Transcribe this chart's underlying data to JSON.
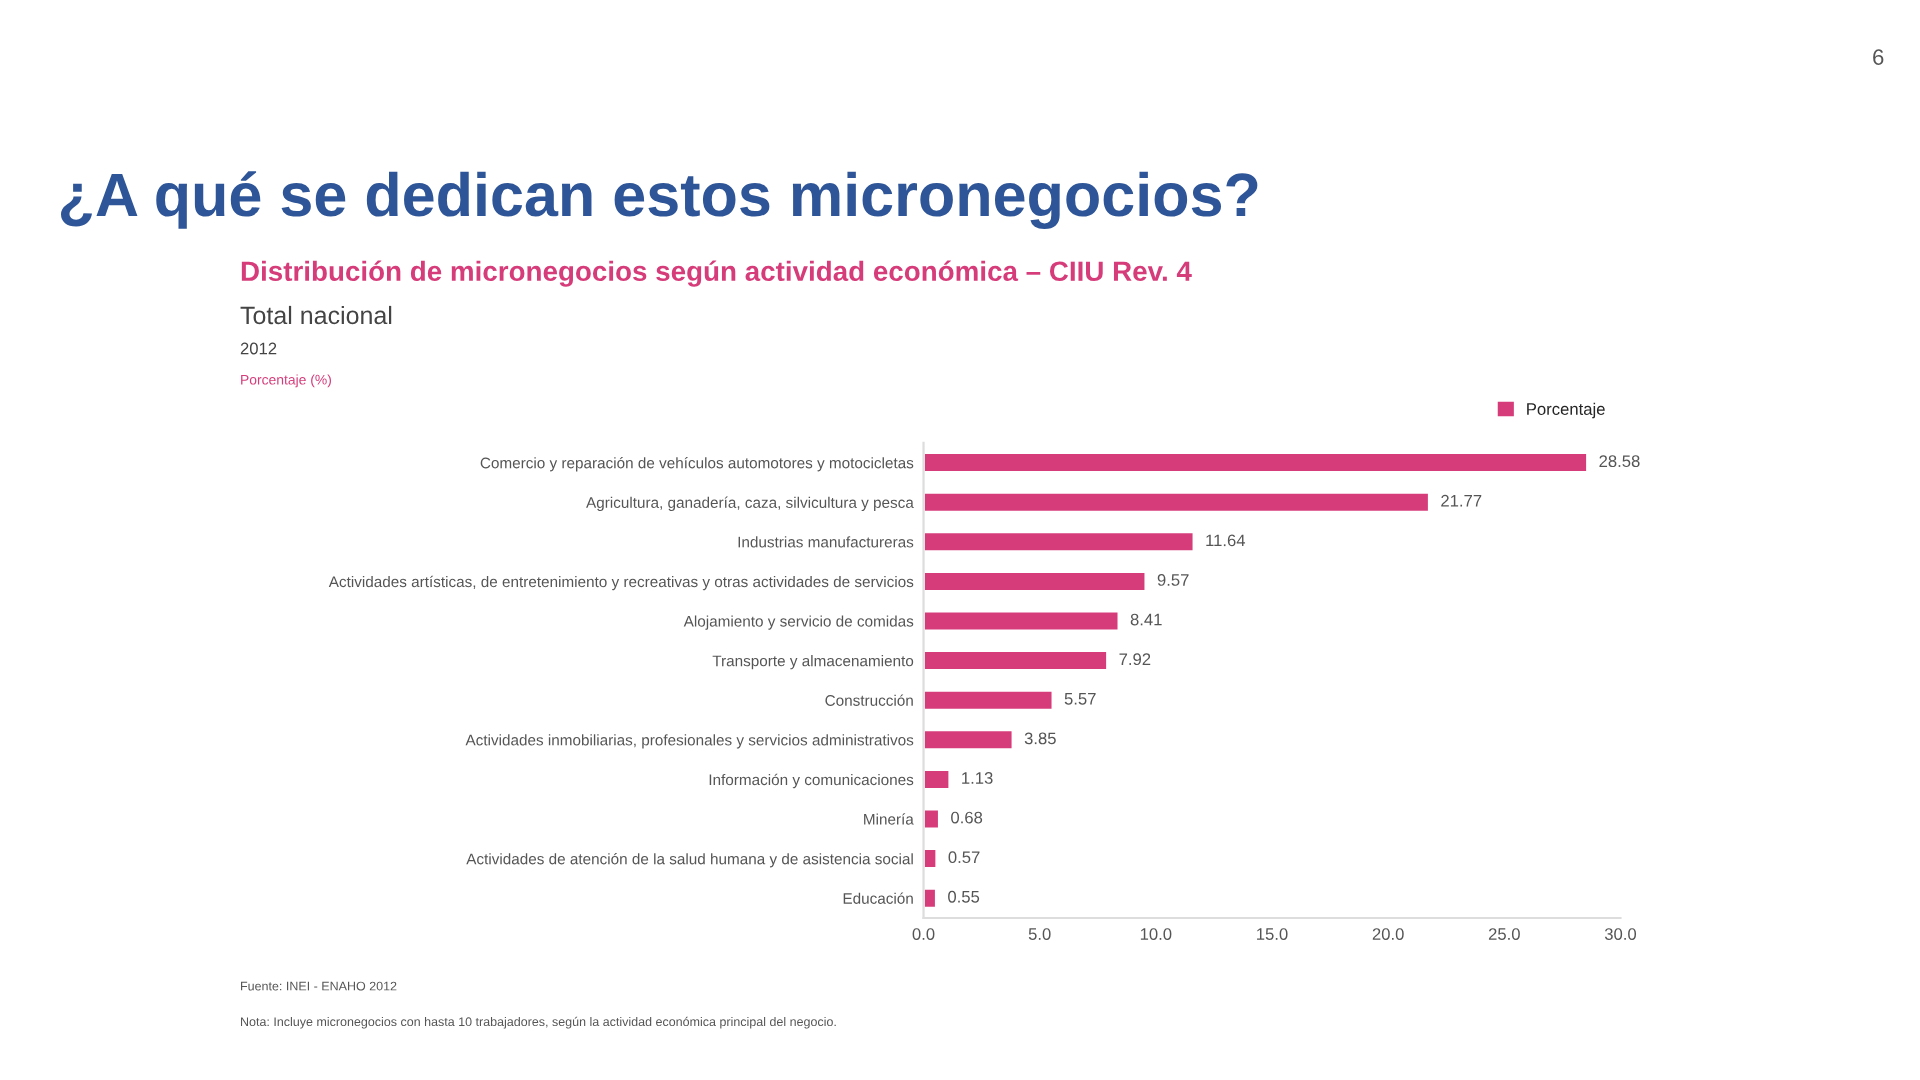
{
  "chart_data": {
    "type": "bar",
    "orientation": "horizontal",
    "title": "Distribución de micronegocios según actividad económica – CIIU Rev. 4",
    "subtitle": "Total nacional\n2012\nPorcentaje (%)",
    "categories": [
      "Comercio y reparación de vehículos automotores y motocicletas",
      "Agricultura, ganadería, caza, silvicultura y pesca",
      "Industrias manufactureras",
      "Actividades artísticas, de entretenimiento y recreativas y otras actividades de servicios",
      "Alojamiento y servicio de comidas",
      "Transporte y almacenamiento",
      "Construcción",
      "Actividades inmobiliarias, profesionales y servicios administrativos",
      "Información y comunicaciones",
      "Minería",
      "Actividades de atención de la salud humana y de asistencia social",
      "Educación"
    ],
    "series": [
      {
        "name": "Porcentaje",
        "color": "#d63c7a",
        "values": [
          28.58,
          21.77,
          11.64,
          9.57,
          8.41,
          7.92,
          5.57,
          3.85,
          1.13,
          0.68,
          0.57,
          0.55
        ]
      }
    ],
    "value_labels": [
      "28.58",
      "21.77",
      "11.64",
      "9.57",
      "8.41",
      "7.92",
      "5.57",
      "3.85",
      "1.13",
      "0.68",
      "0.57",
      "0.55"
    ],
    "xlim": [
      0,
      30
    ],
    "xticks": [
      {
        "value": 0,
        "label": "0.0"
      },
      {
        "value": 5,
        "label": "5.0"
      },
      {
        "value": 10,
        "label": "10.0"
      },
      {
        "value": 15,
        "label": "15.0"
      },
      {
        "value": 20,
        "label": "20.0"
      },
      {
        "value": 25,
        "label": "25.0"
      },
      {
        "value": 30,
        "label": "30.0"
      }
    ],
    "grid": false,
    "legend": "top right",
    "annotations": [
      "¿A qué se dedican estos micronegocios?",
      "Fuente: INEI - ENAHO 2012",
      "Nota: Incluye micronegocios con hasta 10 trabajadores, según la actividad económica principal del negocio.",
      "6"
    ]
  }
}
